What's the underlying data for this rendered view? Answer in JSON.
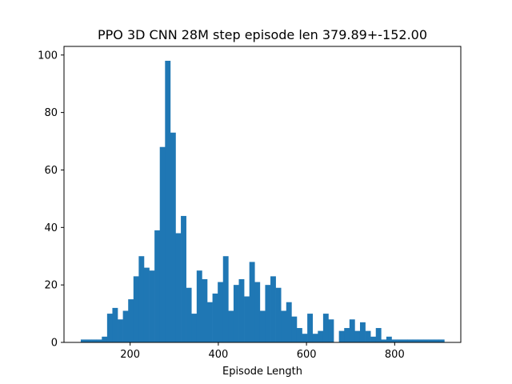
{
  "chart_data": {
    "type": "bar",
    "title": "PPO 3D CNN 28M step episode len 379.89+-152.00",
    "xlabel": "Episode Length",
    "ylabel": "",
    "xlim": [
      50,
      950
    ],
    "ylim": [
      0,
      103
    ],
    "x_ticks": [
      200,
      400,
      600,
      800
    ],
    "y_ticks": [
      0,
      20,
      40,
      60,
      80,
      100
    ],
    "bar_color": "#1f77b4",
    "bin_start": 88,
    "bin_width": 11.95,
    "values": [
      1,
      1,
      1,
      1,
      2,
      10,
      12,
      8,
      11,
      15,
      23,
      30,
      26,
      25,
      39,
      68,
      98,
      73,
      38,
      44,
      19,
      10,
      25,
      22,
      14,
      17,
      21,
      30,
      11,
      20,
      22,
      16,
      28,
      21,
      11,
      20,
      23,
      19,
      11,
      14,
      9,
      5,
      3,
      10,
      3,
      4,
      10,
      8,
      0,
      4,
      5,
      8,
      4,
      7,
      4,
      2,
      5,
      1,
      2,
      1,
      1,
      1,
      1,
      1,
      1,
      1,
      1,
      1,
      1
    ]
  }
}
